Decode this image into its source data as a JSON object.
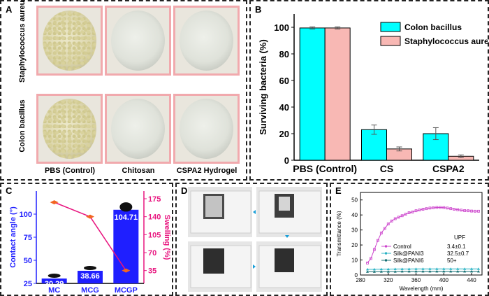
{
  "panelA": {
    "label": "A",
    "row_labels": [
      "Staphylococcus aureus",
      "Colon bacillus"
    ],
    "col_labels": [
      "PBS (Control)",
      "Chitosan",
      "CSPA2 Hydrogel"
    ]
  },
  "panelB": {
    "label": "B"
  },
  "panelC": {
    "label": "C"
  },
  "panelD": {
    "label": "D"
  },
  "panelE": {
    "label": "E"
  },
  "colors": {
    "cyan": "#00ffff",
    "pink": "#f8b8b4",
    "blue": "#1f1fff",
    "magenta": "#e8157f",
    "orange": "#f26522",
    "purple": "#cc44cc",
    "teal1": "#2ab3c4",
    "teal2": "#146f73"
  },
  "chart_data": [
    {
      "type": "bar",
      "panel": "B",
      "categories": [
        "PBS (Control)",
        "CS",
        "CSPA2"
      ],
      "series": [
        {
          "name": "Colon bacillus",
          "values": [
            99.5,
            23,
            20
          ],
          "errors": [
            0.8,
            3.5,
            4.5
          ]
        },
        {
          "name": "Staphylococcus aureus",
          "values": [
            99.5,
            8.5,
            3
          ],
          "errors": [
            0.8,
            1.5,
            1
          ]
        }
      ],
      "ylabel": "Surviving bacteria (%)",
      "ylim": [
        0,
        110
      ],
      "yticks": [
        "0",
        "20",
        "40",
        "60",
        "80",
        "100"
      ],
      "legend": "top-right"
    },
    {
      "type": "bar",
      "panel": "C",
      "categories": [
        "MC",
        "MCG",
        "MCGP"
      ],
      "bar_values": [
        30.29,
        38.66,
        104.71
      ],
      "bar_labels": [
        "30.29",
        "38.66",
        "104.71"
      ],
      "ylabel": "Contact angle (°)",
      "ylim": [
        25,
        125
      ],
      "yticks": [
        "25",
        "50",
        "75",
        "100"
      ],
      "line": {
        "values": [
          168,
          140,
          35
        ]
      },
      "ylabel_right": "Swelling (%)",
      "ylim_right": [
        10,
        190
      ],
      "yticks_right": [
        "35",
        "70",
        "105",
        "140",
        "175"
      ]
    },
    {
      "type": "line",
      "panel": "E",
      "xlabel": "Wavelength (mm)",
      "ylabel": "Transmittance (%)",
      "xlim": [
        280,
        455
      ],
      "ylim": [
        0,
        55
      ],
      "xticks": [
        "280",
        "320",
        "360",
        "400",
        "440"
      ],
      "yticks": [
        "0",
        "10",
        "20",
        "30",
        "40",
        "50"
      ],
      "legend_header": "UPF",
      "series": [
        {
          "name": "Control",
          "upf": "3.4±0.1",
          "x": [
            290,
            295,
            300,
            305,
            310,
            315,
            320,
            325,
            330,
            335,
            340,
            345,
            350,
            355,
            360,
            365,
            370,
            375,
            380,
            385,
            390,
            395,
            400,
            405,
            410,
            415,
            420,
            425,
            430,
            435,
            440,
            445,
            450
          ],
          "y": [
            8,
            11,
            17,
            23,
            28,
            31,
            34,
            36,
            37.5,
            38.5,
            39.5,
            40.5,
            41.5,
            42,
            42.8,
            43.3,
            43.8,
            44.2,
            44.6,
            44.8,
            45,
            45,
            44.9,
            44.6,
            44.2,
            43.8,
            43.5,
            43.2,
            42.9,
            42.8,
            42.6,
            42.5,
            42.5
          ]
        },
        {
          "name": "Silk@PANI3",
          "upf": "32.5±0.7",
          "x": [
            290,
            300,
            310,
            320,
            330,
            340,
            350,
            360,
            370,
            380,
            390,
            400,
            410,
            420,
            430,
            440,
            450
          ],
          "y": [
            3.8,
            3.8,
            3.9,
            3.9,
            4,
            4,
            4,
            4.1,
            4.1,
            4.1,
            4.1,
            4.1,
            4.1,
            4.1,
            4.1,
            4.1,
            4.1
          ]
        },
        {
          "name": "Silk@PANI6",
          "upf": "50+",
          "x": [
            290,
            300,
            310,
            320,
            330,
            340,
            350,
            360,
            370,
            380,
            390,
            400,
            410,
            420,
            430,
            440,
            450
          ],
          "y": [
            2.2,
            2.2,
            2.3,
            2.3,
            2.3,
            2.4,
            2.4,
            2.4,
            2.4,
            2.4,
            2.4,
            2.4,
            2.4,
            2.4,
            2.4,
            2.4,
            2.4
          ]
        }
      ]
    }
  ]
}
